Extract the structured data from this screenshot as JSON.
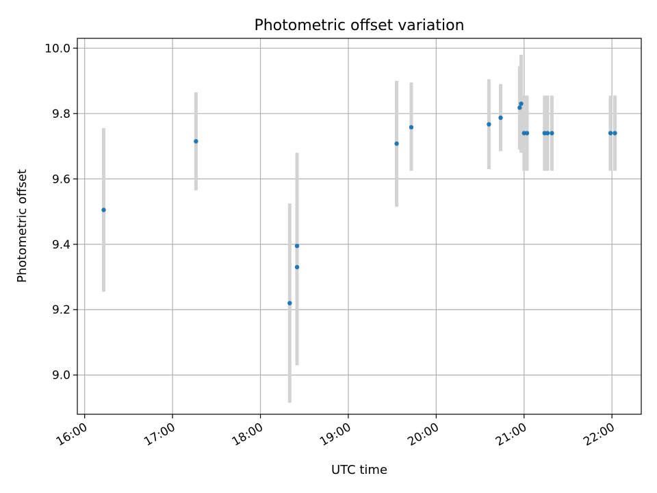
{
  "chart_data": {
    "type": "scatter",
    "title": "Photometric offset variation",
    "xlabel": "UTC time",
    "ylabel": "Photometric offset",
    "x_axis_kind": "time",
    "xlim": [
      "15:55",
      "22:20"
    ],
    "ylim": [
      8.88,
      10.03
    ],
    "x_ticks": [
      "16:00",
      "17:00",
      "18:00",
      "19:00",
      "20:00",
      "21:00",
      "22:00"
    ],
    "y_ticks": [
      "9.0",
      "9.2",
      "9.4",
      "9.6",
      "9.8",
      "10.0"
    ],
    "grid": true,
    "marker_color": "#1f77b4",
    "errorbar_color": "#d3d3d3",
    "points": [
      {
        "x": "16:13",
        "y": 9.505,
        "ylow": 9.255,
        "yhigh": 9.755
      },
      {
        "x": "17:16",
        "y": 9.715,
        "ylow": 9.565,
        "yhigh": 9.865
      },
      {
        "x": "18:20",
        "y": 9.22,
        "ylow": 8.915,
        "yhigh": 9.525
      },
      {
        "x": "18:25",
        "y": 9.395,
        "ylow": 9.03,
        "yhigh": 9.68
      },
      {
        "x": "18:25",
        "y": 9.33,
        "ylow": 9.12,
        "yhigh": 9.54
      },
      {
        "x": "19:33",
        "y": 9.708,
        "ylow": 9.515,
        "yhigh": 9.9
      },
      {
        "x": "19:43",
        "y": 9.758,
        "ylow": 9.625,
        "yhigh": 9.895
      },
      {
        "x": "20:36",
        "y": 9.767,
        "ylow": 9.63,
        "yhigh": 9.905
      },
      {
        "x": "20:44",
        "y": 9.787,
        "ylow": 9.685,
        "yhigh": 9.89
      },
      {
        "x": "20:57",
        "y": 9.818,
        "ylow": 9.69,
        "yhigh": 9.945
      },
      {
        "x": "20:58",
        "y": 9.83,
        "ylow": 9.68,
        "yhigh": 9.98
      },
      {
        "x": "21:00",
        "y": 9.74,
        "ylow": 9.625,
        "yhigh": 9.855
      },
      {
        "x": "21:02",
        "y": 9.74,
        "ylow": 9.625,
        "yhigh": 9.855
      },
      {
        "x": "21:14",
        "y": 9.74,
        "ylow": 9.625,
        "yhigh": 9.855
      },
      {
        "x": "21:16",
        "y": 9.74,
        "ylow": 9.625,
        "yhigh": 9.855
      },
      {
        "x": "21:19",
        "y": 9.74,
        "ylow": 9.625,
        "yhigh": 9.855
      },
      {
        "x": "21:59",
        "y": 9.74,
        "ylow": 9.625,
        "yhigh": 9.855
      },
      {
        "x": "22:02",
        "y": 9.74,
        "ylow": 9.625,
        "yhigh": 9.855
      }
    ]
  }
}
